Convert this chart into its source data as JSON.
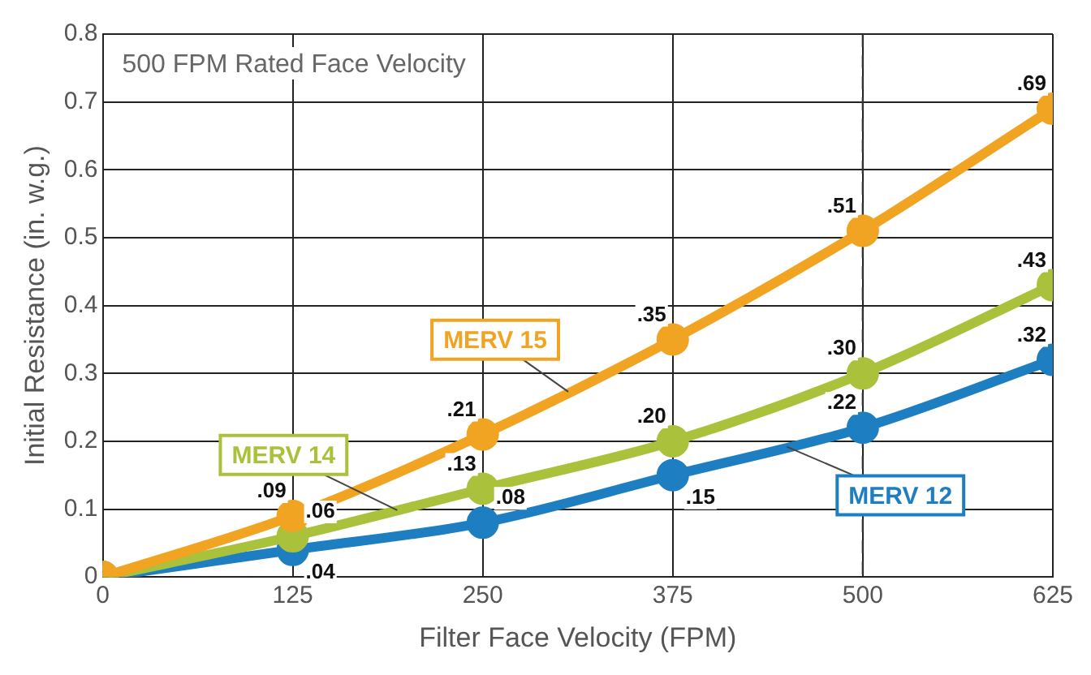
{
  "chart_data": {
    "type": "line",
    "xlabel": "Filter Face Velocity (FPM)",
    "ylabel": "Initial Resistance (in. w.g.)",
    "annotations": [
      "500 FPM Rated Face Velocity"
    ],
    "x": [
      0,
      125,
      250,
      375,
      500,
      625
    ],
    "series": [
      {
        "name": "MERV 15",
        "color": "#f0a422",
        "values": [
          0,
          0.09,
          0.21,
          0.35,
          0.51,
          0.69
        ],
        "value_labels": [
          null,
          ".09",
          ".21",
          ".35",
          ".51",
          ".69"
        ]
      },
      {
        "name": "MERV 14",
        "color": "#a9c13b",
        "values": [
          0,
          0.06,
          0.13,
          0.2,
          0.3,
          0.43
        ],
        "value_labels": [
          null,
          ".06",
          ".13",
          ".20",
          ".30",
          ".43"
        ]
      },
      {
        "name": "MERV 12",
        "color": "#1d7fc1",
        "values": [
          0,
          0.04,
          0.08,
          0.15,
          0.22,
          0.32
        ],
        "value_labels": [
          null,
          ".04",
          ".08",
          ".15",
          ".22",
          ".32"
        ]
      }
    ],
    "xlim": [
      0,
      625
    ],
    "xticks": [
      0,
      125,
      250,
      375,
      500,
      625
    ],
    "ylim": [
      0,
      0.8
    ],
    "yticks": [
      0,
      0.1,
      0.2,
      0.3,
      0.4,
      0.5,
      0.6,
      0.7,
      0.8
    ],
    "ref_lines": [
      {
        "axis": "x",
        "value": 500,
        "line_style": "dashed"
      }
    ],
    "grid": true,
    "legend": false,
    "marker": "circle",
    "line_style": "solid"
  }
}
